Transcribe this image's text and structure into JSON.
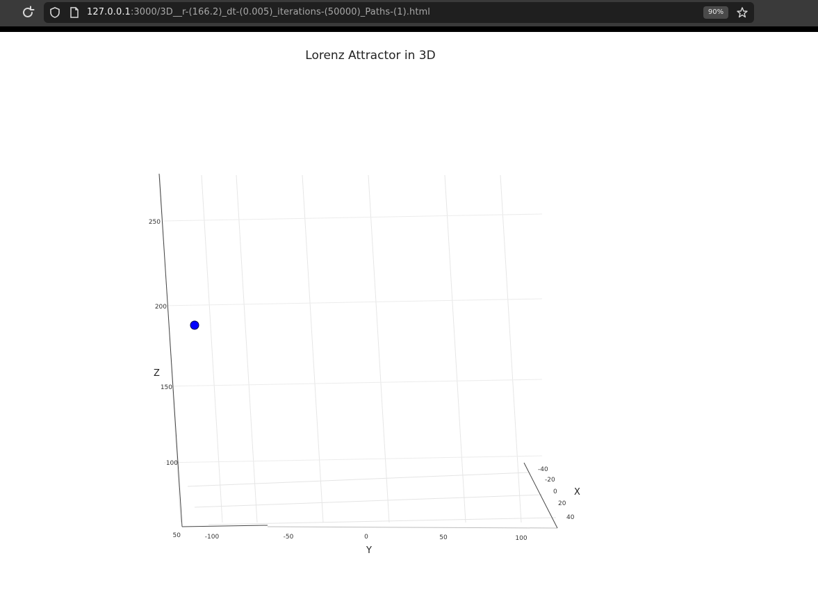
{
  "browser": {
    "url_host": "127.0.0.1",
    "url_path": ":3000/3D__r-(166.2)_dt-(0.005)_iterations-(50000)_Paths-(1).html",
    "zoom": "90%",
    "icons": [
      "reload-icon",
      "shield-icon",
      "page-icon",
      "star-icon"
    ]
  },
  "chart_data": {
    "type": "line",
    "title": "Lorenz Attractor in 3D",
    "axes": {
      "x": {
        "label": "X",
        "ticks": [
          "-40",
          "-20",
          "0",
          "20",
          "40"
        ],
        "range": [
          -50,
          50
        ]
      },
      "y": {
        "label": "Y",
        "ticks": [
          "-100",
          "-50",
          "0",
          "50",
          "100"
        ],
        "range": [
          -125,
          125
        ]
      },
      "z": {
        "label": "Z",
        "ticks": [
          "100",
          "150",
          "200",
          "250"
        ],
        "range": [
          50,
          280
        ]
      }
    },
    "corner_tick": "50",
    "series": [
      {
        "color": "#0000ff",
        "marker_start": true
      }
    ],
    "grid": true,
    "legend": "none"
  }
}
